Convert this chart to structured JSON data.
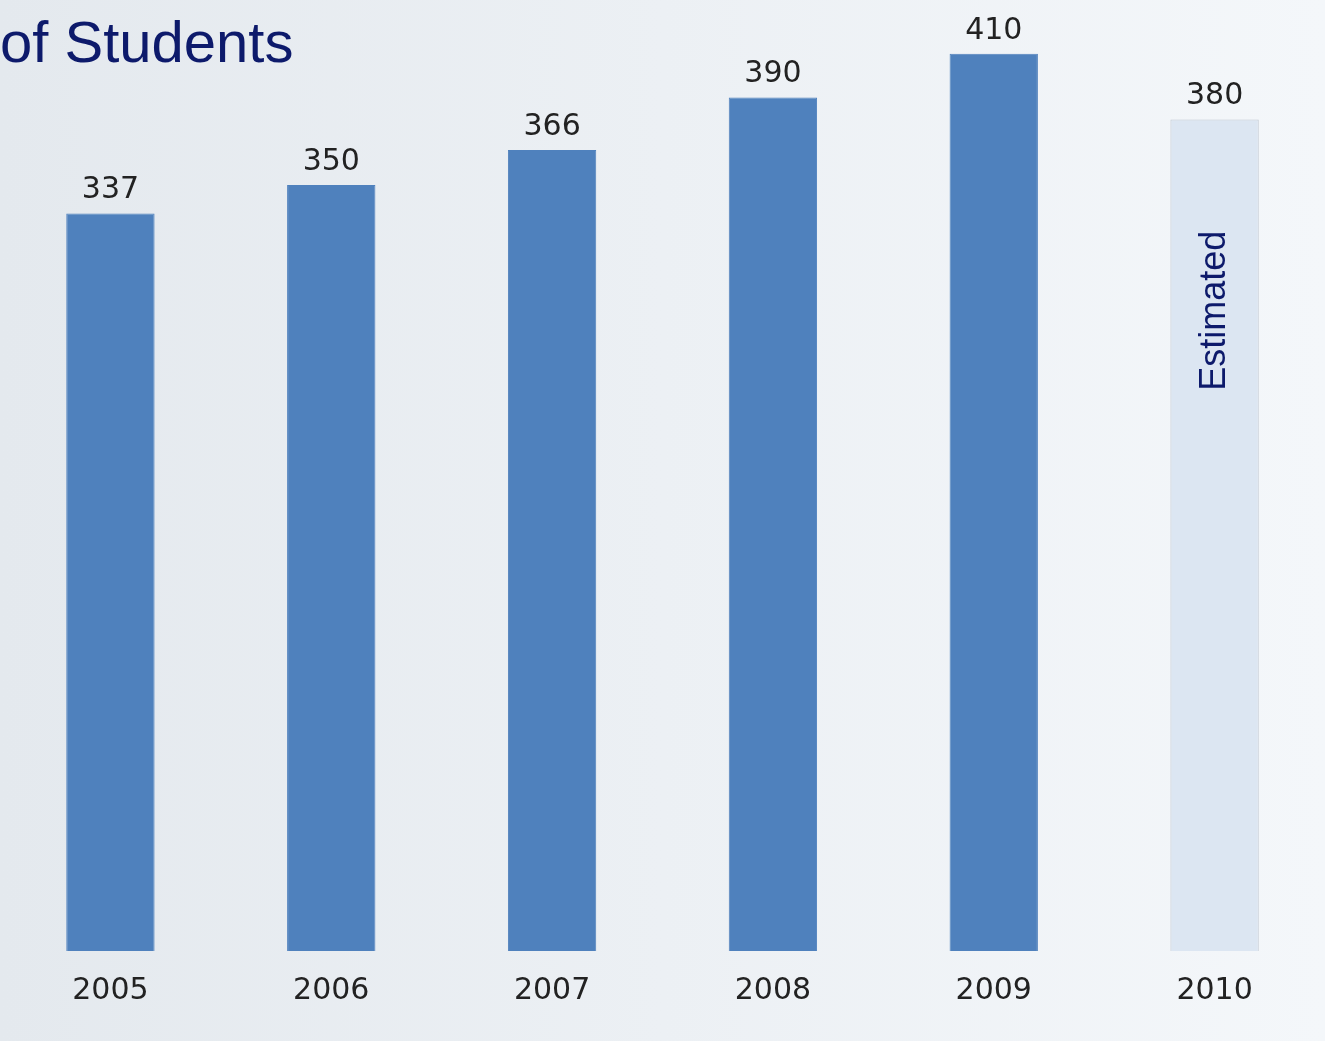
{
  "chart_data": {
    "type": "bar",
    "title": "of Students",
    "categories": [
      "2005",
      "2006",
      "2007",
      "2008",
      "2009",
      "2010"
    ],
    "values": [
      337,
      350,
      366,
      390,
      410,
      380
    ],
    "colors": [
      "#4f81bd",
      "#4f81bd",
      "#4f81bd",
      "#4f81bd",
      "#4f81bd",
      "#dce6f2"
    ],
    "data_labels": true,
    "grid": false,
    "legend": false,
    "annotations": [
      "Estimated"
    ]
  }
}
